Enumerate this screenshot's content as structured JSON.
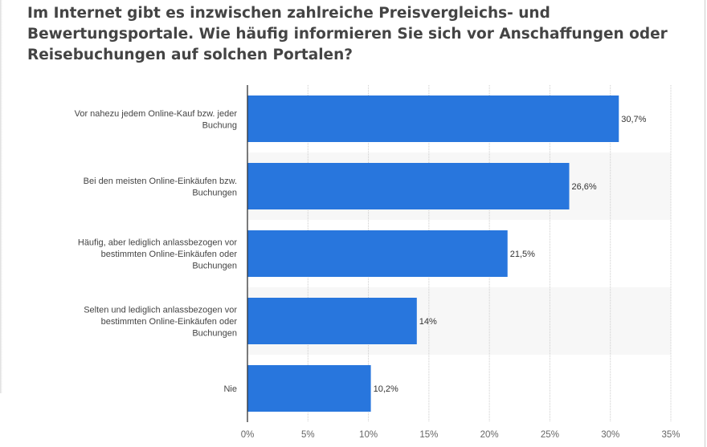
{
  "chart_data": {
    "type": "bar",
    "orientation": "horizontal",
    "title": "Im Internet gibt es inzwischen zahlreiche Preisvergleichs- und Bewertungsportale. Wie häufig informieren Sie sich vor Anschaffungen oder Reisebuchungen auf solchen Portalen?",
    "categories": [
      [
        "Vor nahezu jedem Online-Kauf bzw. jeder",
        "Buchung"
      ],
      [
        "Bei den meisten Online-Einkäufen bzw.",
        "Buchungen"
      ],
      [
        "Häufig, aber lediglich anlassbezogen vor",
        "bestimmten Online-Einkäufen oder",
        "Buchungen"
      ],
      [
        "Selten und lediglich anlassbezogen vor",
        "bestimmten Online-Einkäufen oder",
        "Buchungen"
      ],
      [
        "Nie"
      ]
    ],
    "values": [
      30.7,
      26.6,
      21.5,
      14,
      10.2
    ],
    "value_labels": [
      "30,7%",
      "26,6%",
      "21,5%",
      "14%",
      "10,2%"
    ],
    "xlim": [
      0,
      35
    ],
    "ticks": [
      "0%",
      "5%",
      "10%",
      "15%",
      "20%",
      "25%",
      "30%",
      "35%"
    ],
    "grid": true,
    "bar_color": "#2876dd",
    "band_color": "#f7f7f7"
  }
}
